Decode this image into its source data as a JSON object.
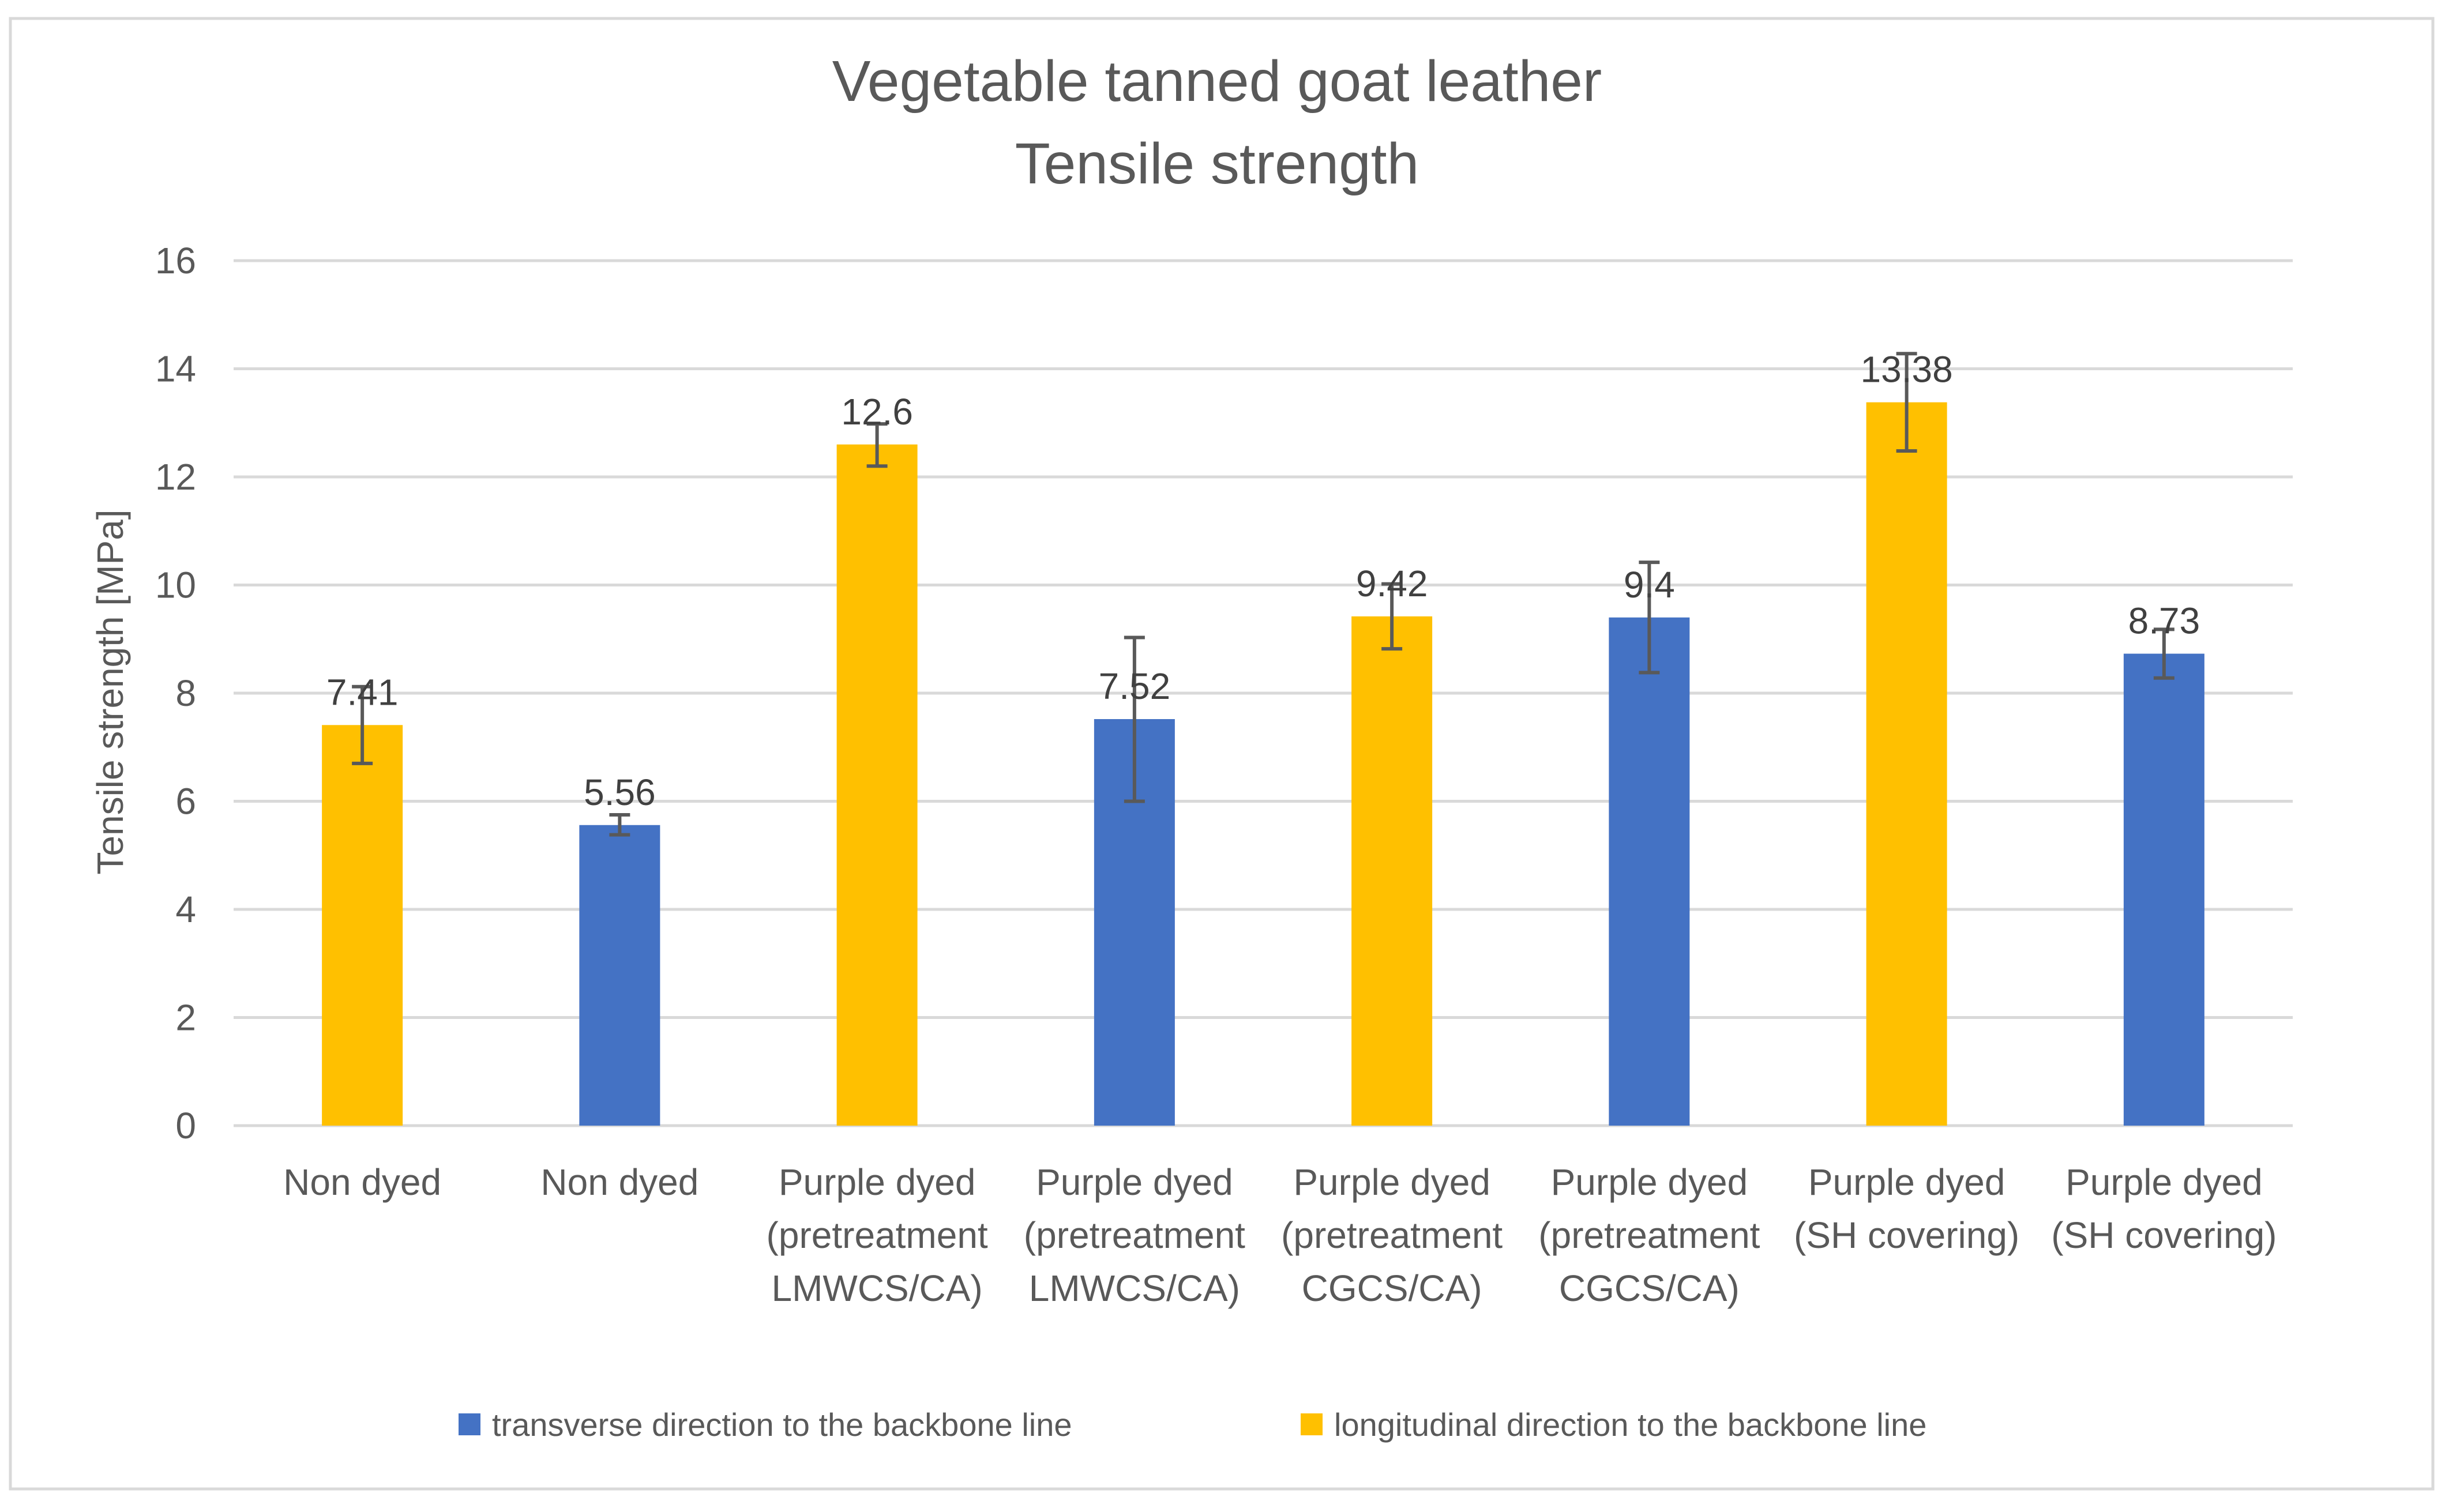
{
  "chart_data": {
    "type": "bar",
    "title": "Vegetable tanned goat leather",
    "subtitle": "Tensile strength",
    "xlabel": "",
    "ylabel": "Tensile strength [MPa]",
    "ylim": [
      0,
      16
    ],
    "ytick_step": 2,
    "grid": true,
    "legend_position": "bottom",
    "categories": [
      [
        "Non dyed"
      ],
      [
        "Non dyed"
      ],
      [
        "Purple dyed",
        "(pretreatment",
        "LMWCS/CA)"
      ],
      [
        "Purple dyed",
        "(pretreatment",
        "LMWCS/CA)"
      ],
      [
        "Purple dyed",
        "(pretreatment",
        "CGCS/CA)"
      ],
      [
        "Purple dyed",
        "(pretreatment",
        "CGCS/CA)"
      ],
      [
        "Purple dyed",
        "(SH covering)"
      ],
      [
        "Purple dyed",
        "(SH covering)"
      ]
    ],
    "values": [
      7.41,
      5.56,
      12.6,
      7.52,
      9.42,
      9.4,
      13.38,
      8.73
    ],
    "data_labels": [
      "7.41",
      "5.56",
      "12.6",
      "7.52",
      "9.42",
      "9.4",
      "13.38",
      "8.73"
    ],
    "error_low": [
      6.7,
      5.38,
      12.2,
      6.0,
      8.82,
      8.38,
      12.48,
      8.28
    ],
    "error_high": [
      8.12,
      5.75,
      12.98,
      9.03,
      10.02,
      10.42,
      14.28,
      9.18
    ],
    "series_index": [
      1,
      0,
      1,
      0,
      1,
      0,
      1,
      0
    ],
    "series": [
      {
        "name": "transverse direction to the backbone line",
        "color": "#4472c4"
      },
      {
        "name": "longitudinal direction to the backbone line",
        "color": "#ffc000"
      }
    ]
  }
}
